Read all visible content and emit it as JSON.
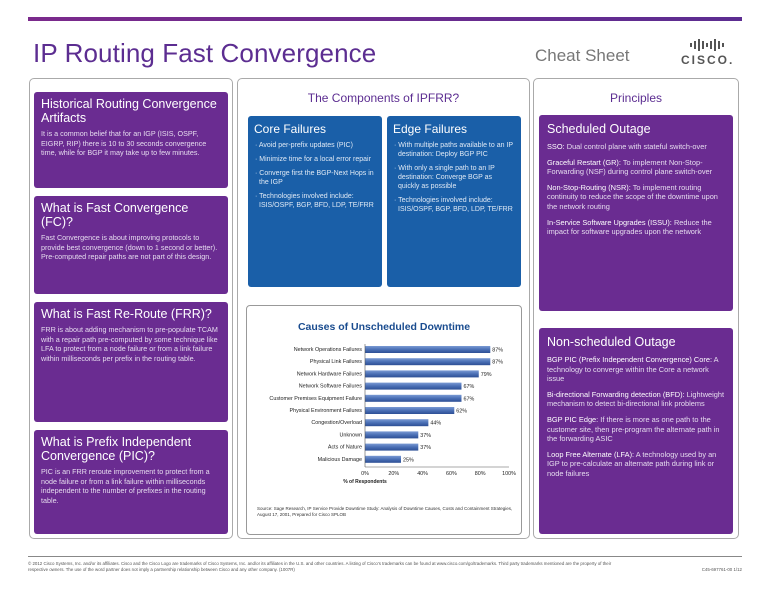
{
  "header": {
    "title": "IP Routing Fast Convergence",
    "subtitle": "Cheat Sheet",
    "logo_text": "CISCO."
  },
  "left": {
    "boxes": [
      {
        "title": "Historical Routing Convergence Artifacts",
        "body": "It is a common belief that for an IGP (ISIS, OSPF, EIGRP, RIP) there is 10 to 30 seconds convergence time, while for BGP it may take up to few minutes."
      },
      {
        "title": "What is Fast Convergence (FC)?",
        "body": "Fast Convergence is about improving protocols to provide best convergence (down to 1 second or better). Pre-computed repair paths are not part of this design."
      },
      {
        "title": "What is Fast Re-Route (FRR)?",
        "body": "FRR is about adding mechanism to pre-populate TCAM with a repair path pre-computed by some technique like LFA to protect from a node failure or from a link failure within milliseconds per prefix in the routing table."
      },
      {
        "title": "What is Prefix Independent Convergence (PIC)?",
        "body": "PIC is an FRR reroute improvement to protect from a node failure or from a link failure within milliseconds independent to the number of prefixes in the routing table."
      }
    ]
  },
  "middle": {
    "heading": "The Components of IPFRR?",
    "core": {
      "title": "Core Failures",
      "items": [
        "Avoid per-prefix updates (PIC)",
        "Minimize time for a local error repair",
        "Converge first the BGP-Next Hops in the IGP",
        "Technologies involved include: ISIS/OSPF, BGP, BFD, LDP, TE/FRR"
      ]
    },
    "edge": {
      "title": "Edge Failures",
      "items": [
        "With multiple paths available to an IP destination: Deploy BGP PIC",
        "With only a single path to an IP destination: Converge BGP as quickly as possible",
        "Technologies involved include: ISIS/OSPF, BGP, BFD, LDP, TE/FRR"
      ]
    },
    "source": "Source: Sage Research, IP Service Provide Downtime Study: Analysis of Downtime Causes, Costs and Containment Strategies, August 17, 2001, Prepared for Cisco SPLOB"
  },
  "chart_data": {
    "type": "bar",
    "orientation": "horizontal",
    "title": "Causes of Unscheduled Downtime",
    "xlabel": "% of Respondents",
    "xlim": [
      0,
      100
    ],
    "xticks": [
      "0%",
      "20%",
      "40%",
      "60%",
      "80%",
      "100%"
    ],
    "categories": [
      "Network Operations Failures",
      "Physical Link Failures",
      "Network Hardware Failures",
      "Network Software Failures",
      "Customer Premises Equipment Failure",
      "Physical Environment Failures",
      "Congestion/Overload",
      "Unknown",
      "Acts of Nature",
      "Malicious Damage"
    ],
    "values": [
      87,
      87,
      79,
      67,
      67,
      62,
      44,
      37,
      37,
      25
    ],
    "labels": [
      "87%",
      "87%",
      "79%",
      "67%",
      "67%",
      "62%",
      "44%",
      "37%",
      "37%",
      "25%"
    ],
    "bar_color": "#4a6fb5"
  },
  "right": {
    "heading": "Principles",
    "scheduled": {
      "title": "Scheduled Outage",
      "items": [
        {
          "term": "SSO:",
          "text": "Dual control plane with stateful switch-over"
        },
        {
          "term": "Graceful Restart (GR):",
          "text": "To implement Non-Stop-Forwarding (NSF) during control plane switch-over"
        },
        {
          "term": "Non-Stop-Routing (NSR):",
          "text": "To implement routing continuity to reduce the scope of the downtime upon the network routing"
        },
        {
          "term": "In-Service Software Upgrades (ISSU):",
          "text": "Reduce the impact for software upgrades upon the network"
        }
      ]
    },
    "nonscheduled": {
      "title": "Non-scheduled Outage",
      "items": [
        {
          "term": "BGP PIC (Prefix Independent Convergence) Core:",
          "text": "A technology to converge within the Core a network issue"
        },
        {
          "term": "Bi-directional Forwarding detection (BFD):",
          "text": "Lightweight mechanism to detect bi-directional link problems"
        },
        {
          "term": "BGP PIC Edge:",
          "text": "If there is more as one path to the customer site, then pre-program the alternate path in the forwarding ASIC"
        },
        {
          "term": "Loop Free Alternate (LFA):",
          "text": "A technology used by an IGP to pre-calculate an alternate path during link or node failures"
        }
      ]
    }
  },
  "footer": {
    "legal": "© 2012 Cisco Systems, Inc. and/or its affiliates. Cisco and the Cisco Logo are trademarks of Cisco Systems, Inc. and/or its affiliates in the U.S. and other countries. A listing of Cisco's trademarks can be found at www.cisco.com/go/trademarks. Third party trademarks mentioned are the property of their respective owners. The use of the word partner does not imply a partnership relationship between Cisco and any other company. (1007R)",
    "docid": "C45-697761-00 1/12"
  }
}
